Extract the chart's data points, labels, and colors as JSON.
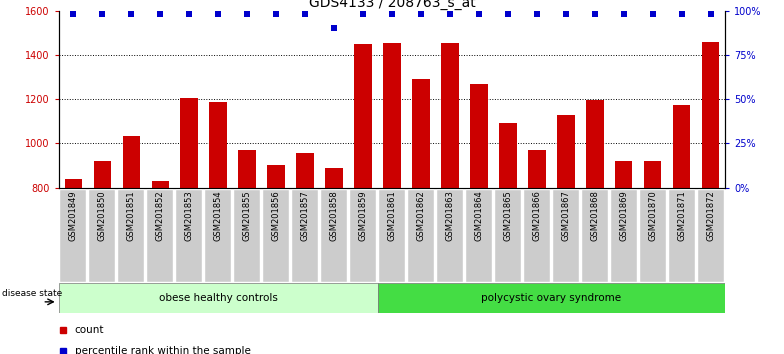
{
  "title": "GDS4133 / 208763_s_at",
  "samples": [
    "GSM201849",
    "GSM201850",
    "GSM201851",
    "GSM201852",
    "GSM201853",
    "GSM201854",
    "GSM201855",
    "GSM201856",
    "GSM201857",
    "GSM201858",
    "GSM201859",
    "GSM201861",
    "GSM201862",
    "GSM201863",
    "GSM201864",
    "GSM201865",
    "GSM201866",
    "GSM201867",
    "GSM201868",
    "GSM201869",
    "GSM201870",
    "GSM201871",
    "GSM201872"
  ],
  "counts": [
    840,
    920,
    1035,
    830,
    1205,
    1185,
    970,
    900,
    955,
    890,
    1450,
    1455,
    1290,
    1455,
    1270,
    1090,
    970,
    1130,
    1195,
    920,
    920,
    1175,
    1460
  ],
  "percentile_ranks": [
    98,
    98,
    98,
    98,
    98,
    98,
    98,
    98,
    98,
    90,
    98,
    98,
    98,
    98,
    98,
    98,
    98,
    98,
    98,
    98,
    98,
    98,
    98
  ],
  "group1_label": "obese healthy controls",
  "group2_label": "polycystic ovary syndrome",
  "group1_count": 11,
  "group2_count": 12,
  "bar_color": "#cc0000",
  "dot_color": "#0000cc",
  "ylim_left": [
    800,
    1600
  ],
  "ylim_right": [
    0,
    100
  ],
  "yticks_left": [
    800,
    1000,
    1200,
    1400,
    1600
  ],
  "yticks_right": [
    0,
    25,
    50,
    75,
    100
  ],
  "group1_bg": "#ccffcc",
  "group2_bg": "#44dd44",
  "tick_bg": "#cccccc",
  "legend_count_label": "count",
  "legend_pct_label": "percentile rank within the sample",
  "disease_state_label": "disease state",
  "title_fontsize": 10,
  "tick_fontsize": 6.5
}
